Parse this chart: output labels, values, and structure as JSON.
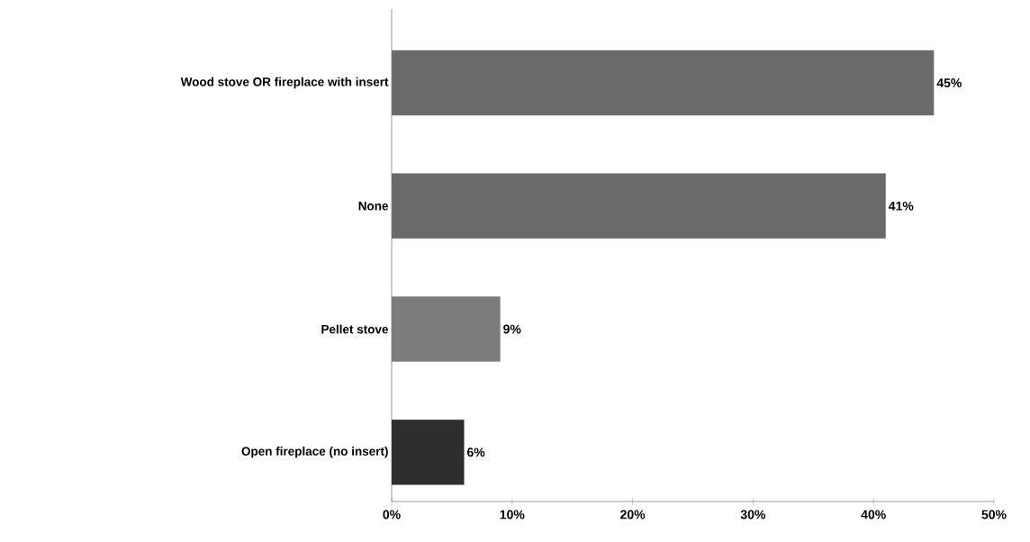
{
  "chart_data": {
    "type": "bar",
    "orientation": "horizontal",
    "categories": [
      "Wood stove OR fireplace with insert",
      "None",
      "Pellet stove",
      "Open fireplace (no insert)"
    ],
    "values": [
      45,
      41,
      9,
      6
    ],
    "colors": [
      "#6a6a6a",
      "#6a6a6a",
      "#7c7c7c",
      "#2e2e2e"
    ],
    "value_labels": [
      "45%",
      "41%",
      "9%",
      "6%"
    ],
    "xlim": [
      0,
      50
    ],
    "xticks": [
      {
        "value": 0,
        "label": "0%"
      },
      {
        "value": 10,
        "label": "10%"
      },
      {
        "value": 20,
        "label": "20%"
      },
      {
        "value": 30,
        "label": "30%"
      },
      {
        "value": 40,
        "label": "40%"
      },
      {
        "value": 50,
        "label": "50%"
      }
    ],
    "grid": false
  }
}
